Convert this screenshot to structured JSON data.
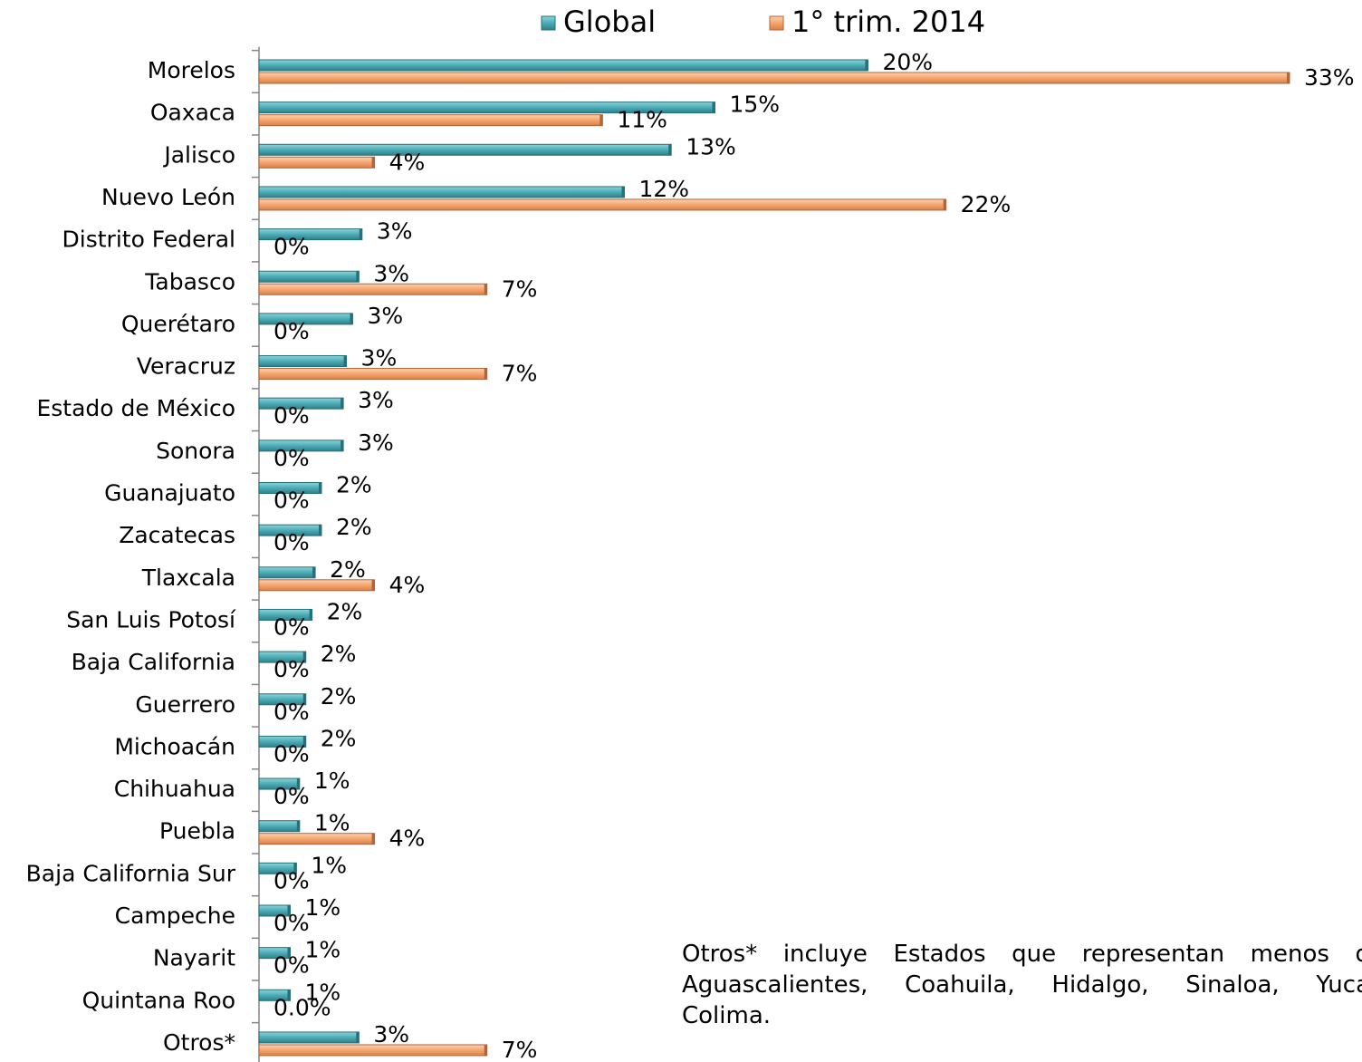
{
  "chart_data": {
    "type": "hbar",
    "categories": [
      "Morelos",
      "Oaxaca",
      "Jalisco",
      "Nuevo León",
      "Distrito Federal",
      "Tabasco",
      "Querétaro",
      "Veracruz",
      "Estado de México",
      "Sonora",
      "Guanajuato",
      "Zacatecas",
      "Tlaxcala",
      "San Luis Potosí",
      "Baja California",
      "Guerrero",
      "Michoacán",
      "Chihuahua",
      "Puebla",
      "Baja California Sur",
      "Campeche",
      "Nayarit",
      "Quintana Roo",
      "Otros*"
    ],
    "series": [
      {
        "name": "Global",
        "color": "#4bacb6",
        "values": [
          19.5,
          14.6,
          13.2,
          11.7,
          3.3,
          3.2,
          3.0,
          2.8,
          2.7,
          2.7,
          2.0,
          2.0,
          1.8,
          1.7,
          1.5,
          1.5,
          1.5,
          1.3,
          1.3,
          1.2,
          1.0,
          1.0,
          1.0,
          3.2
        ],
        "value_labels": [
          "20%",
          "15%",
          "13%",
          "12%",
          "3%",
          "3%",
          "3%",
          "3%",
          "3%",
          "3%",
          "2%",
          "2%",
          "2%",
          "2%",
          "2%",
          "2%",
          "2%",
          "1%",
          "1%",
          "1%",
          "1%",
          "1%",
          "1%",
          "3%"
        ]
      },
      {
        "name": "1° trim. 2014",
        "color": "#f5a56e",
        "values": [
          33,
          11,
          3.7,
          22,
          0,
          7.3,
          0,
          7.3,
          0,
          0,
          0,
          0,
          3.7,
          0,
          0,
          0,
          0,
          0,
          3.7,
          0,
          0,
          0,
          0,
          7.3
        ],
        "value_labels": [
          "33%",
          "11%",
          "4%",
          "22%",
          "0%",
          "7%",
          "0%",
          "7%",
          "0%",
          "0%",
          "0%",
          "0%",
          "4%",
          "0%",
          "0%",
          "0%",
          "0%",
          "0%",
          "4%",
          "0%",
          "0%",
          "0%",
          "0.0%",
          "7%"
        ]
      }
    ],
    "xlim": [
      0,
      33
    ],
    "legend": "top",
    "note": [
      "Otros* incluye Estados que representan menos d",
      "Aguascalientes, Coahuila, Hidalgo, Sinaloa, Yuca",
      "Colima."
    ]
  }
}
